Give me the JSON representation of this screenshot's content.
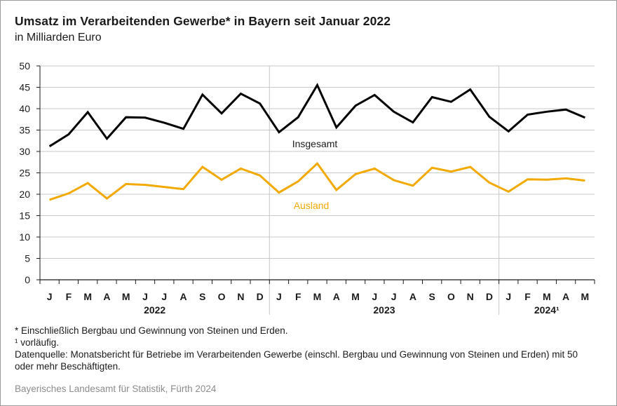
{
  "title": "Umsatz im Verarbeitenden Gewerbe* in Bayern seit Januar 2022",
  "subtitle": "in Milliarden Euro",
  "footnotes": {
    "star": "* Einschließlich Bergbau und Gewinnung von Steinen und Erden.",
    "one": "¹  vorläufig.",
    "source_note": "Datenquelle: Monatsbericht für Betriebe im Verarbeitenden Gewerbe (einschl. Bergbau und Gewinnung von Steinen und Erden) mit 50 oder mehr Beschäftigten."
  },
  "credit": "Bayerisches Landesamt für Statistik, Fürth 2024",
  "colors": {
    "insgesamt": "#000000",
    "ausland": "#f2a900",
    "grid": "#c8c8c8",
    "axis": "#1a1a1a"
  },
  "chart_data": {
    "type": "line",
    "x": [
      "J",
      "F",
      "M",
      "A",
      "M",
      "J",
      "J",
      "A",
      "S",
      "O",
      "N",
      "D",
      "J",
      "F",
      "M",
      "A",
      "M",
      "J",
      "J",
      "A",
      "S",
      "O",
      "N",
      "D",
      "J",
      "F",
      "M",
      "A",
      "M"
    ],
    "year_groups": [
      {
        "label": "2022",
        "start": 0,
        "end": 11
      },
      {
        "label": "2023",
        "start": 12,
        "end": 23
      },
      {
        "label": "2024¹",
        "start": 24,
        "end": 28
      }
    ],
    "ylim": [
      0,
      50
    ],
    "yticks": [
      0,
      5,
      10,
      15,
      20,
      25,
      30,
      35,
      40,
      45,
      50
    ],
    "grid": true,
    "series": [
      {
        "name": "Insgesamt",
        "color_key": "insgesamt",
        "values": [
          31.2,
          34.0,
          39.2,
          33.0,
          38.0,
          37.9,
          36.7,
          35.3,
          43.3,
          38.9,
          43.5,
          41.2,
          34.5,
          38.0,
          45.5,
          35.6,
          40.7,
          43.2,
          39.3,
          36.8,
          42.7,
          41.6,
          44.5,
          38.1,
          34.7,
          38.6,
          39.3,
          39.8,
          37.9
        ]
      },
      {
        "name": "Ausland",
        "color_key": "ausland",
        "values": [
          18.7,
          20.2,
          22.6,
          19.0,
          22.4,
          22.2,
          21.7,
          21.2,
          26.4,
          23.4,
          26.0,
          24.4,
          20.4,
          23.0,
          27.2,
          21.0,
          24.7,
          26.0,
          23.3,
          22.0,
          26.2,
          25.3,
          26.4,
          22.7,
          20.6,
          23.5,
          23.4,
          23.7,
          23.2
        ]
      }
    ]
  }
}
